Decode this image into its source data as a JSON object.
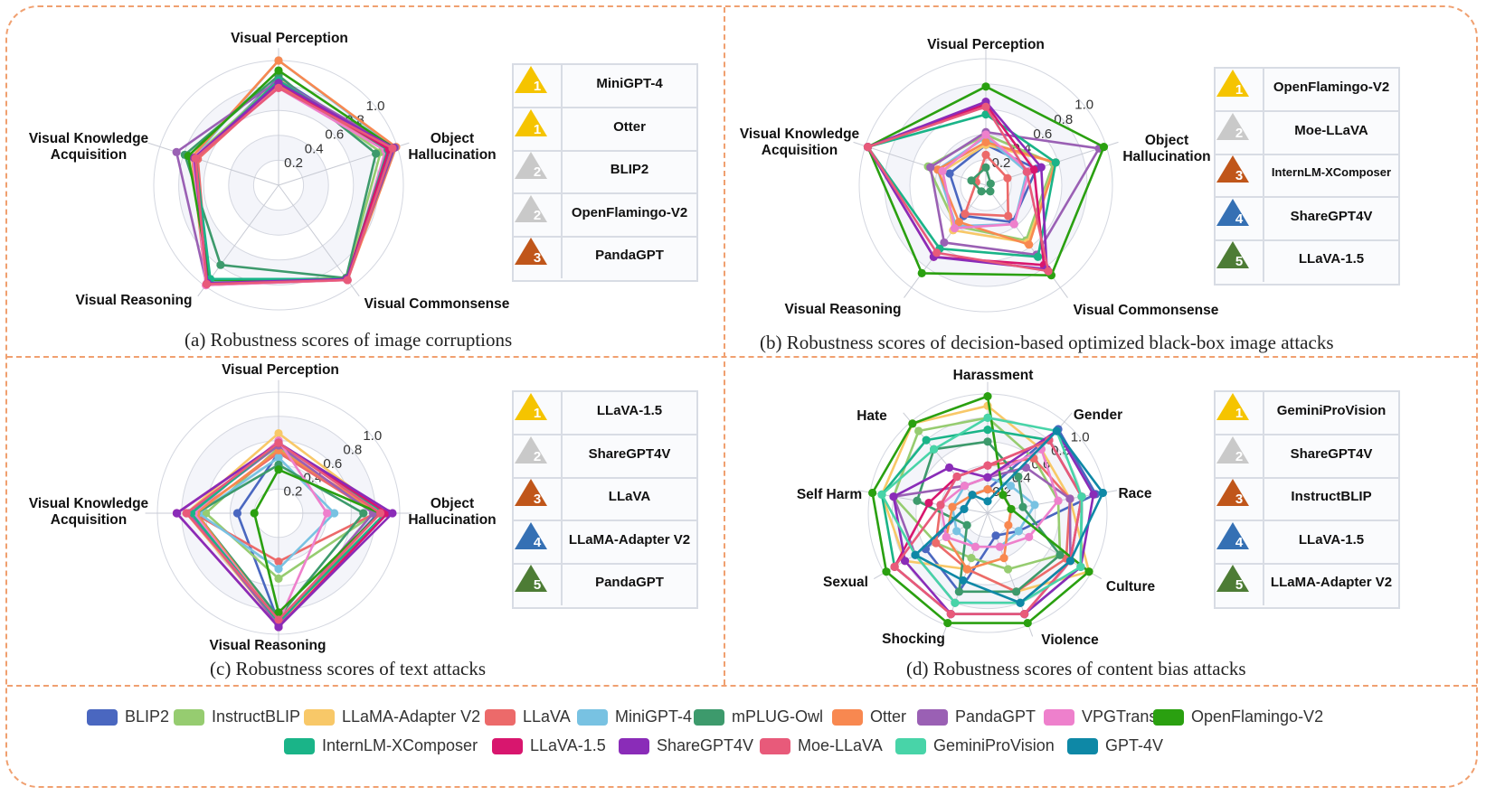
{
  "legend": [
    {
      "name": "BLIP2",
      "color": "#4a67c0"
    },
    {
      "name": "InstructBLIP",
      "color": "#96cc70"
    },
    {
      "name": "LLaMA-Adapter V2",
      "color": "#f8c868"
    },
    {
      "name": "LLaVA",
      "color": "#ec6a6a"
    },
    {
      "name": "MiniGPT-4",
      "color": "#78c2e2"
    },
    {
      "name": "mPLUG-Owl",
      "color": "#3d9a6c"
    },
    {
      "name": "Otter",
      "color": "#f88850"
    },
    {
      "name": "PandaGPT",
      "color": "#9a60b4"
    },
    {
      "name": "VPGTrans",
      "color": "#ee80cc"
    },
    {
      "name": "OpenFlamingo-V2",
      "color": "#2aa010"
    },
    {
      "name": "InternLM-XComposer",
      "color": "#1ab488"
    },
    {
      "name": "LLaVA-1.5",
      "color": "#d8166e"
    },
    {
      "name": "ShareGPT4V",
      "color": "#8a2cb8"
    },
    {
      "name": "Moe-LLaVA",
      "color": "#e85a7a"
    },
    {
      "name": "GeminiProVision",
      "color": "#48d4a8"
    },
    {
      "name": "GPT-4V",
      "color": "#0e88a6"
    }
  ],
  "rank_colors": {
    "1": "#f5c400",
    "2": "#c9c9c9",
    "3": "#c0561a",
    "4": "#3570b4",
    "5": "#4d7c35"
  },
  "chart_data": [
    {
      "type": "radar",
      "id": "a",
      "caption": "(a) Robustness scores of image corruptions",
      "axes": [
        "Visual Perception",
        "Object Hallucination",
        "Visual Commonsense",
        "Visual Reasoning",
        "Visual Knowledge Acquisition"
      ],
      "ticks": [
        "0.2",
        "0.4",
        "0.6",
        "0.8",
        "1.0"
      ],
      "range": [
        0,
        1
      ],
      "ranking": [
        {
          "rank": "1",
          "model": "MiniGPT-4"
        },
        {
          "rank": "1",
          "model": "Otter"
        },
        {
          "rank": "2",
          "model": "BLIP2"
        },
        {
          "rank": "2",
          "model": "OpenFlamingo-V2"
        },
        {
          "rank": "3",
          "model": "PandaGPT"
        }
      ],
      "series": [
        {
          "name": "BLIP2",
          "values": [
            0.86,
            0.94,
            0.92,
            0.96,
            0.7
          ]
        },
        {
          "name": "InstructBLIP",
          "values": [
            0.84,
            0.86,
            0.92,
            0.95,
            0.72
          ]
        },
        {
          "name": "LLaMA-Adapter V2",
          "values": [
            0.85,
            0.93,
            0.92,
            0.97,
            0.69
          ]
        },
        {
          "name": "LLaVA",
          "values": [
            0.8,
            0.92,
            0.93,
            0.96,
            0.68
          ]
        },
        {
          "name": "MiniGPT-4",
          "values": [
            1.0,
            0.98,
            0.94,
            0.96,
            0.72
          ]
        },
        {
          "name": "mPLUG-Owl",
          "values": [
            0.88,
            0.82,
            0.92,
            0.79,
            0.79
          ]
        },
        {
          "name": "Otter",
          "values": [
            1.0,
            0.99,
            0.94,
            0.99,
            0.73
          ]
        },
        {
          "name": "PandaGPT",
          "values": [
            0.84,
            0.98,
            0.93,
            0.98,
            0.86
          ]
        },
        {
          "name": "VPGTrans",
          "values": [
            0.78,
            0.9,
            0.94,
            0.99,
            0.72
          ]
        },
        {
          "name": "OpenFlamingo-V2",
          "values": [
            0.92,
            0.97,
            0.93,
            0.94,
            0.76
          ]
        },
        {
          "name": "InternLM-XComposer",
          "values": [
            0.84,
            0.92,
            0.93,
            0.93,
            0.7
          ]
        },
        {
          "name": "LLaVA-1.5",
          "values": [
            0.82,
            0.93,
            0.93,
            0.98,
            0.7
          ]
        },
        {
          "name": "ShareGPT4V",
          "values": [
            0.82,
            0.97,
            0.93,
            0.97,
            0.71
          ]
        },
        {
          "name": "Moe-LLaVA",
          "values": [
            0.78,
            0.96,
            0.94,
            0.98,
            0.7
          ]
        }
      ]
    },
    {
      "type": "radar",
      "id": "b",
      "caption": "(b) Robustness scores of decision-based optimized black-box image attacks",
      "axes": [
        "Visual Perception",
        "Object Hallucination",
        "Visual Commonsense",
        "Visual Reasoning",
        "Visual Knowledge Acquisition"
      ],
      "ticks": [
        "0.2",
        "0.4",
        "0.6",
        "0.8",
        "1.0"
      ],
      "range": [
        0,
        1
      ],
      "ranking": [
        {
          "rank": "1",
          "model": "OpenFlamingo-V2"
        },
        {
          "rank": "2",
          "model": "Moe-LLaVA"
        },
        {
          "rank": "3",
          "model": "InternLM-XComposer"
        },
        {
          "rank": "4",
          "model": "ShareGPT4V"
        },
        {
          "rank": "5",
          "model": "LLaVA-1.5"
        }
      ],
      "series": [
        {
          "name": "BLIP2",
          "values": [
            0.32,
            0.42,
            0.36,
            0.3,
            0.3
          ]
        },
        {
          "name": "InstructBLIP",
          "values": [
            0.4,
            0.56,
            0.54,
            0.4,
            0.48
          ]
        },
        {
          "name": "LLaMA-Adapter V2",
          "values": [
            0.32,
            0.58,
            0.56,
            0.44,
            0.36
          ]
        },
        {
          "name": "LLaVA",
          "values": [
            0.24,
            0.18,
            0.3,
            0.28,
            0.08
          ]
        },
        {
          "name": "MiniGPT-4",
          "values": [
            0.38,
            0.34,
            0.38,
            0.4,
            0.4
          ]
        },
        {
          "name": "mPLUG-Owl",
          "values": [
            0.14,
            0.04,
            0.06,
            0.06,
            0.12
          ]
        },
        {
          "name": "Otter",
          "values": [
            0.34,
            0.58,
            0.58,
            0.36,
            0.4
          ]
        },
        {
          "name": "PandaGPT",
          "values": [
            0.42,
            0.94,
            0.68,
            0.56,
            0.46
          ]
        },
        {
          "name": "VPGTrans",
          "values": [
            0.4,
            0.36,
            0.38,
            0.42,
            0.36
          ]
        },
        {
          "name": "OpenFlamingo-V2",
          "values": [
            0.78,
            0.98,
            0.88,
            0.86,
            0.98
          ]
        },
        {
          "name": "InternLM-XComposer",
          "values": [
            0.56,
            0.58,
            0.7,
            0.62,
            0.98
          ]
        },
        {
          "name": "LLaVA-1.5",
          "values": [
            0.64,
            0.4,
            0.78,
            0.7,
            0.98
          ]
        },
        {
          "name": "ShareGPT4V",
          "values": [
            0.66,
            0.46,
            0.82,
            0.7,
            0.98
          ]
        },
        {
          "name": "Moe-LLaVA",
          "values": [
            0.62,
            0.34,
            0.84,
            0.66,
            0.98
          ]
        }
      ]
    },
    {
      "type": "radar",
      "id": "c",
      "caption": "(c) Robustness scores of  text attacks",
      "axes": [
        "Visual Perception",
        "Object Hallucination",
        "Visual Reasoning",
        "Visual Knowledge Acquisition"
      ],
      "ticks": [
        "0.2",
        "0.4",
        "0.6",
        "0.8",
        "1.0"
      ],
      "range": [
        0,
        1
      ],
      "ranking": [
        {
          "rank": "1",
          "model": "LLaVA-1.5"
        },
        {
          "rank": "2",
          "model": "ShareGPT4V"
        },
        {
          "rank": "3",
          "model": "LLaVA"
        },
        {
          "rank": "4",
          "model": "LLaMA-Adapter V2"
        },
        {
          "rank": "5",
          "model": "PandaGPT"
        }
      ],
      "series": [
        {
          "name": "BLIP2",
          "values": [
            0.5,
            0.82,
            0.9,
            0.34
          ]
        },
        {
          "name": "InstructBLIP",
          "values": [
            0.54,
            0.8,
            0.54,
            0.6
          ]
        },
        {
          "name": "LLaMA-Adapter V2",
          "values": [
            0.66,
            0.88,
            0.92,
            0.76
          ]
        },
        {
          "name": "LLaVA",
          "values": [
            0.5,
            0.8,
            0.4,
            0.7
          ]
        },
        {
          "name": "MiniGPT-4",
          "values": [
            0.46,
            0.46,
            0.46,
            0.66
          ]
        },
        {
          "name": "mPLUG-Owl",
          "values": [
            0.4,
            0.7,
            0.86,
            0.68
          ]
        },
        {
          "name": "Otter",
          "values": [
            0.52,
            0.84,
            0.9,
            0.68
          ]
        },
        {
          "name": "PandaGPT",
          "values": [
            0.56,
            0.78,
            0.92,
            0.74
          ]
        },
        {
          "name": "VPGTrans",
          "values": [
            0.6,
            0.4,
            0.9,
            0.7
          ]
        },
        {
          "name": "OpenFlamingo-V2",
          "values": [
            0.36,
            0.84,
            0.82,
            0.2
          ]
        },
        {
          "name": "InternLM-XComposer",
          "values": [
            0.58,
            0.88,
            0.9,
            0.72
          ]
        },
        {
          "name": "LLaVA-1.5",
          "values": [
            0.58,
            0.9,
            0.94,
            0.84
          ]
        },
        {
          "name": "ShareGPT4V",
          "values": [
            0.58,
            0.94,
            0.94,
            0.84
          ]
        },
        {
          "name": "Moe-LLaVA",
          "values": [
            0.58,
            0.84,
            0.88,
            0.76
          ]
        }
      ]
    },
    {
      "type": "radar",
      "id": "d",
      "caption": "(d) Robustness scores of  content bias attacks",
      "axes": [
        "Harassment",
        "Gender",
        "Race",
        "Culture",
        "Violence",
        "Shocking",
        "Sexual",
        "Self Harm",
        "Hate"
      ],
      "ticks": [
        "0.2",
        "0.4",
        "0.6",
        "0.8",
        "1.0"
      ],
      "range": [
        0,
        1
      ],
      "ranking": [
        {
          "rank": "1",
          "model": "GeminiProVision"
        },
        {
          "rank": "2",
          "model": "ShareGPT4V"
        },
        {
          "rank": "3",
          "model": "InstructBLIP"
        },
        {
          "rank": "4",
          "model": "LLaVA-1.5"
        },
        {
          "rank": "5",
          "model": "LLaMA-Adapter V2"
        }
      ],
      "series": [
        {
          "name": "BLIP2",
          "values": [
            0.2,
            0.92,
            0.92,
            0.3,
            0.2,
            0.7,
            0.6,
            0.2,
            0.2
          ]
        },
        {
          "name": "InstructBLIP",
          "values": [
            0.8,
            0.6,
            0.6,
            0.7,
            0.5,
            0.4,
            0.5,
            0.8,
            0.9
          ]
        },
        {
          "name": "LLaMA-Adapter V2",
          "values": [
            0.9,
            0.7,
            0.7,
            0.98,
            0.7,
            0.5,
            0.8,
            0.9,
            0.98
          ]
        },
        {
          "name": "LLaVA",
          "values": [
            0.4,
            0.6,
            0.7,
            0.76,
            0.7,
            0.5,
            0.5,
            0.4,
            0.4
          ]
        },
        {
          "name": "MiniGPT-4",
          "values": [
            0.3,
            0.3,
            0.4,
            0.3,
            0.3,
            0.3,
            0.3,
            0.3,
            0.3
          ]
        },
        {
          "name": "mPLUG-Owl",
          "values": [
            0.6,
            0.4,
            0.3,
            0.7,
            0.7,
            0.7,
            0.2,
            0.6,
            0.7
          ]
        },
        {
          "name": "Otter",
          "values": [
            0.2,
            0.2,
            0.2,
            0.2,
            0.4,
            0.5,
            0.4,
            0.3,
            0.2
          ]
        },
        {
          "name": "PandaGPT",
          "values": [
            0.3,
            0.5,
            0.7,
            0.8,
            0.8,
            0.8,
            0.7,
            0.8,
            0.3
          ]
        },
        {
          "name": "VPGTrans",
          "values": [
            0.3,
            0.7,
            0.6,
            0.4,
            0.3,
            0.3,
            0.4,
            0.4,
            0.3
          ]
        },
        {
          "name": "OpenFlamingo-V2",
          "values": [
            0.98,
            0.2,
            0.2,
            0.98,
            0.98,
            0.98,
            0.98,
            0.98,
            0.98
          ]
        },
        {
          "name": "InternLM-XComposer",
          "values": [
            0.7,
            0.8,
            0.8,
            0.9,
            0.9,
            0.9,
            0.9,
            0.9,
            0.8
          ]
        },
        {
          "name": "LLaVA-1.5",
          "values": [
            0.4,
            0.8,
            0.8,
            0.8,
            0.9,
            0.9,
            0.9,
            0.5,
            0.4
          ]
        },
        {
          "name": "ShareGPT4V",
          "values": [
            0.3,
            0.9,
            0.9,
            0.9,
            0.9,
            0.9,
            0.8,
            0.8,
            0.5
          ]
        },
        {
          "name": "Moe-LLaVA",
          "values": [
            0.4,
            0.8,
            0.8,
            0.8,
            0.9,
            0.9,
            0.9,
            0.4,
            0.4
          ]
        },
        {
          "name": "GeminiProVision",
          "values": [
            0.8,
            0.9,
            0.8,
            0.9,
            0.8,
            0.8,
            0.7,
            0.9,
            0.7
          ]
        },
        {
          "name": "GPT-4V",
          "values": [
            0.1,
            0.9,
            0.98,
            0.8,
            0.8,
            0.6,
            0.7,
            0.2,
            0.2
          ]
        }
      ]
    }
  ]
}
